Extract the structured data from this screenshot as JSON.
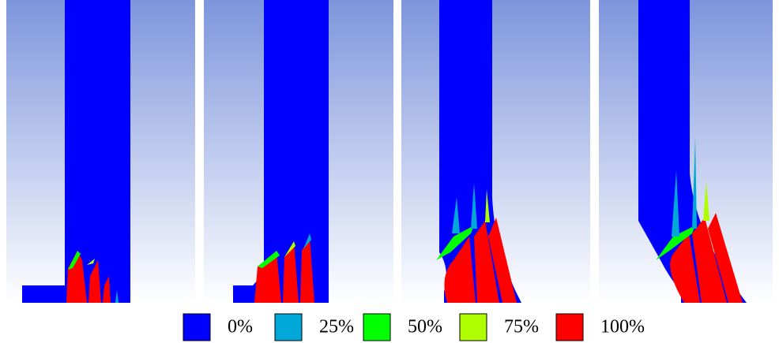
{
  "legend": [
    {
      "label": "0%",
      "color": "#0000ff"
    },
    {
      "label": "25%",
      "color": "#00a8d8"
    },
    {
      "label": "50%",
      "color": "#00ff00"
    },
    {
      "label": "75%",
      "color": "#b0ff00"
    },
    {
      "label": "100%",
      "color": "#ff0000"
    }
  ]
}
